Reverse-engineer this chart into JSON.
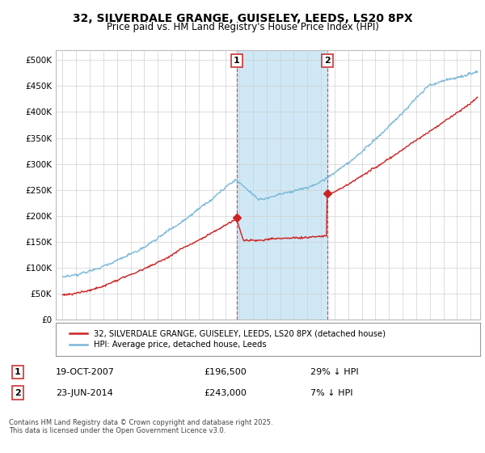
{
  "title": "32, SILVERDALE GRANGE, GUISELEY, LEEDS, LS20 8PX",
  "subtitle": "Price paid vs. HM Land Registry's House Price Index (HPI)",
  "title_fontsize": 10,
  "subtitle_fontsize": 8.5,
  "ylim": [
    0,
    520000
  ],
  "yticks": [
    0,
    50000,
    100000,
    150000,
    200000,
    250000,
    300000,
    350000,
    400000,
    450000,
    500000
  ],
  "ytick_labels": [
    "£0",
    "£50K",
    "£100K",
    "£150K",
    "£200K",
    "£250K",
    "£300K",
    "£350K",
    "£400K",
    "£450K",
    "£500K"
  ],
  "hpi_color": "#7ab8d8",
  "house_color": "#cc2222",
  "sale1_year": 2007.79,
  "sale1_price": 196500,
  "sale2_year": 2014.47,
  "sale2_price": 243000,
  "legend_house_label": "32, SILVERDALE GRANGE, GUISELEY, LEEDS, LS20 8PX (detached house)",
  "legend_hpi_label": "HPI: Average price, detached house, Leeds",
  "marker1_date": "19-OCT-2007",
  "marker1_price_str": "£196,500",
  "marker1_hpi_pct": "29% ↓ HPI",
  "marker2_date": "23-JUN-2014",
  "marker2_price_str": "£243,000",
  "marker2_hpi_pct": "7% ↓ HPI",
  "footer": "Contains HM Land Registry data © Crown copyright and database right 2025.\nThis data is licensed under the Open Government Licence v3.0.",
  "bg_color": "#ffffff",
  "plot_bg_color": "#ffffff",
  "vspan_color": "#d0e8f5",
  "vline_color": "#cc3333"
}
